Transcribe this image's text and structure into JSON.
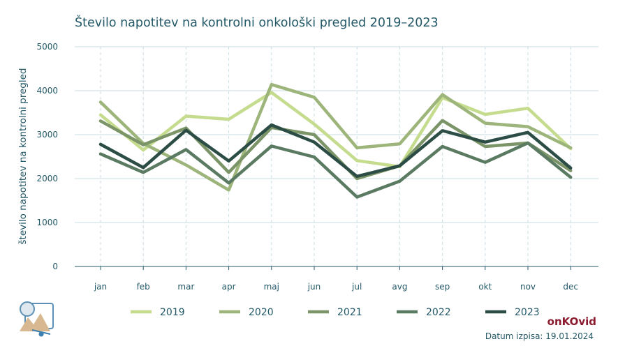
{
  "chart_data": {
    "type": "line",
    "title": "Število napotitev na kontrolni onkološki pregled 2019–2023",
    "xlabel": "",
    "ylabel": "število napotitev na kontrolni pregled",
    "ylim": [
      0,
      5000
    ],
    "yticks": [
      "0",
      "1000",
      "2000",
      "3000",
      "4000",
      "5000"
    ],
    "categories": [
      "jan",
      "feb",
      "mar",
      "apr",
      "maj",
      "jun",
      "jul",
      "avg",
      "sep",
      "okt",
      "nov",
      "dec"
    ],
    "series": [
      {
        "name": "2019",
        "color": "#c5dc8e",
        "values": [
          3450,
          2650,
          3420,
          3350,
          3960,
          3240,
          2410,
          2270,
          3840,
          3460,
          3600,
          2680
        ]
      },
      {
        "name": "2020",
        "color": "#9db57a",
        "values": [
          3740,
          2800,
          2310,
          1740,
          4140,
          3850,
          2700,
          2790,
          3910,
          3260,
          3180,
          2700
        ]
      },
      {
        "name": "2021",
        "color": "#7b9468",
        "values": [
          3310,
          2770,
          3150,
          2140,
          3160,
          3000,
          2000,
          2290,
          3320,
          2730,
          2810,
          2180
        ]
      },
      {
        "name": "2022",
        "color": "#5a7a62",
        "values": [
          2560,
          2140,
          2660,
          1900,
          2740,
          2490,
          1580,
          1940,
          2730,
          2370,
          2810,
          2030
        ]
      },
      {
        "name": "2023",
        "color": "#2c4d45",
        "values": [
          2780,
          2250,
          3100,
          2400,
          3220,
          2830,
          2050,
          2290,
          3090,
          2830,
          3050,
          2240
        ]
      }
    ],
    "grid": true,
    "legend_position": "bottom"
  },
  "footer": {
    "brand": "onKOvid",
    "print_date": "Datum izpisa: 19.01.2024"
  },
  "logo": {
    "icon": "chart-logo-icon"
  }
}
